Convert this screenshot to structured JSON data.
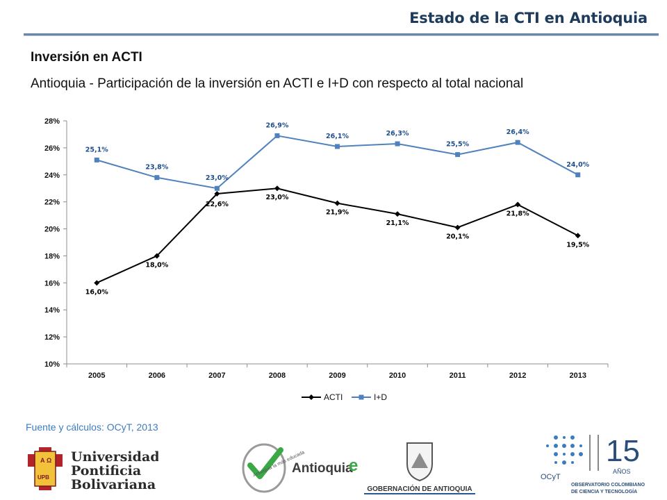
{
  "header": {
    "title": "Estado de la CTI en Antioquia",
    "section_title": "Inversión en ACTI",
    "subtitle": "Antioquia - Participación de la inversión en ACTI e I+D con respecto al total nacional"
  },
  "source_note": "Fuente y cálculos: OCyT, 2013",
  "chart_data": {
    "type": "line",
    "categories": [
      "2005",
      "2006",
      "2007",
      "2008",
      "2009",
      "2010",
      "2011",
      "2012",
      "2013"
    ],
    "ylim": [
      10,
      28
    ],
    "yticks": [
      "10%",
      "12%",
      "14%",
      "16%",
      "18%",
      "20%",
      "22%",
      "24%",
      "26%",
      "28%"
    ],
    "legend_position": "bottom",
    "grid": false,
    "series": [
      {
        "name": "ACTI",
        "color": "#000000",
        "marker": "diamond",
        "values": [
          16.0,
          18.0,
          22.6,
          23.0,
          21.9,
          21.1,
          20.1,
          21.8,
          19.5
        ],
        "labels": [
          "16,0%",
          "18,0%",
          "22,6%",
          "23,0%",
          "21,9%",
          "21,1%",
          "20,1%",
          "21,8%",
          "19,5%"
        ]
      },
      {
        "name": "I+D",
        "color": "#4f81bd",
        "marker": "square",
        "values": [
          25.1,
          23.8,
          23.0,
          26.9,
          26.1,
          26.3,
          25.5,
          26.4,
          24.0
        ],
        "labels": [
          "25,1%",
          "23,8%",
          "23,0%",
          "26,9%",
          "26,1%",
          "26,3%",
          "25,5%",
          "26,4%",
          "24,0%"
        ]
      }
    ]
  },
  "logos": {
    "upb": {
      "name": "Universidad Pontificia Bolivariana",
      "lines": [
        "Universidad",
        "Pontificia",
        "Bolivariana"
      ],
      "shield_text": [
        "A",
        "Ω",
        "UPB"
      ]
    },
    "antioquia": {
      "name": "Antioquia la más educada",
      "badge_text": "Antioquia la más educada",
      "wordmark": "Antioquia",
      "e_letter": "e"
    },
    "gobernacion": {
      "name": "Gobernación de Antioquia",
      "caption": "GOBERNACIÓN DE ANTIOQUIA"
    },
    "ocyt": {
      "name": "Observatorio Colombiano de Ciencia y Tecnología",
      "number": "15",
      "years": "AÑOS",
      "acronym": "OCyT",
      "line1": "OBSERVATORIO COLOMBIANO",
      "line2": "DE CIENCIA Y TECNOLOGÍA"
    }
  },
  "colors": {
    "title": "#1f3b5c",
    "accent_rule": "#6b86a8",
    "source": "#3a7cc0",
    "upb_red": "#b3232a",
    "gob_blue": "#2a5597"
  }
}
